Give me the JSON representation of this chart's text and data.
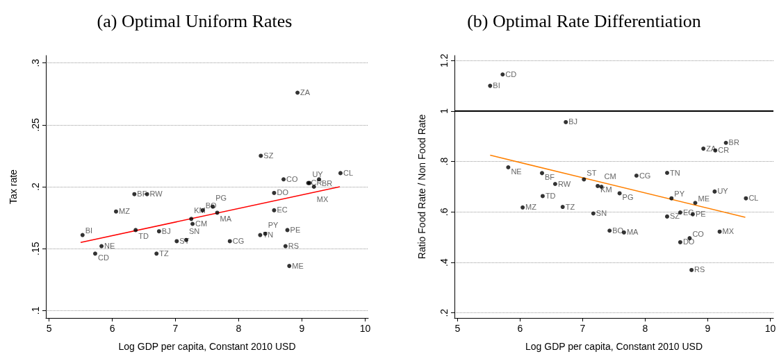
{
  "chart_data": [
    {
      "type": "scatter",
      "title": "(a) Optimal Uniform Rates",
      "xlabel": "Log GDP per capita, Constant 2010 USD",
      "ylabel": "Tax rate",
      "xlim": [
        4.95,
        10.05
      ],
      "xticks": [
        5,
        6,
        7,
        8,
        9,
        10
      ],
      "ylim": [
        0.094,
        0.306
      ],
      "yticks": [
        {
          "value": 0.1,
          "label": ".1"
        },
        {
          "value": 0.15,
          "label": ".15"
        },
        {
          "value": 0.2,
          "label": ".2"
        },
        {
          "value": 0.25,
          "label": ".25"
        },
        {
          "value": 0.3,
          "label": ".3"
        }
      ],
      "grid": "y",
      "marker": "circle",
      "series": [
        {
          "color": "#000000",
          "x": [
            5.53,
            5.83,
            5.73,
            6.06,
            6.35,
            6.55,
            6.37,
            6.74,
            6.7,
            7.02,
            7.17,
            7.25,
            7.27,
            7.43,
            7.59,
            7.66,
            7.86,
            8.35,
            8.34,
            8.42,
            8.56,
            8.56,
            8.71,
            8.93,
            8.77,
            8.74,
            8.8,
            9.1,
            9.12,
            9.19,
            9.27,
            9.61
          ],
          "values": [
            0.161,
            0.152,
            0.146,
            0.18,
            0.194,
            0.194,
            0.165,
            0.164,
            0.146,
            0.156,
            0.157,
            0.174,
            0.17,
            0.181,
            0.184,
            0.179,
            0.156,
            0.225,
            0.161,
            0.162,
            0.195,
            0.181,
            0.206,
            0.276,
            0.165,
            0.152,
            0.136,
            0.203,
            0.203,
            0.2,
            0.206,
            0.211
          ]
        },
        {
          "type": "line",
          "marker": "none",
          "color": "#ff0000",
          "x": [
            5.5,
            9.6
          ],
          "values": [
            0.155,
            0.2
          ]
        }
      ],
      "annotations": [
        {
          "text": "BI",
          "x": 5.53,
          "y": 0.161
        },
        {
          "text": "NE",
          "x": 5.83,
          "y": 0.152
        },
        {
          "text": "CD",
          "x": 5.73,
          "y": 0.146
        },
        {
          "text": "MZ",
          "x": 6.06,
          "y": 0.18
        },
        {
          "text": "BF",
          "x": 6.35,
          "y": 0.194
        },
        {
          "text": "RW",
          "x": 6.55,
          "y": 0.194
        },
        {
          "text": "TD",
          "x": 6.37,
          "y": 0.165
        },
        {
          "text": "BJ",
          "x": 6.74,
          "y": 0.164
        },
        {
          "text": "TZ",
          "x": 6.7,
          "y": 0.146
        },
        {
          "text": "ST",
          "x": 7.02,
          "y": 0.156
        },
        {
          "text": "SN",
          "x": 7.17,
          "y": 0.157
        },
        {
          "text": "KM",
          "x": 7.25,
          "y": 0.174
        },
        {
          "text": "CM",
          "x": 7.27,
          "y": 0.17
        },
        {
          "text": "BO",
          "x": 7.43,
          "y": 0.181
        },
        {
          "text": "PG",
          "x": 7.59,
          "y": 0.184
        },
        {
          "text": "MA",
          "x": 7.66,
          "y": 0.179
        },
        {
          "text": "CG",
          "x": 7.86,
          "y": 0.156
        },
        {
          "text": "SZ",
          "x": 8.35,
          "y": 0.225
        },
        {
          "text": "TN",
          "x": 8.34,
          "y": 0.161
        },
        {
          "text": "PY",
          "x": 8.42,
          "y": 0.162
        },
        {
          "text": "DO",
          "x": 8.56,
          "y": 0.195
        },
        {
          "text": "EC",
          "x": 8.56,
          "y": 0.181
        },
        {
          "text": "CO",
          "x": 8.71,
          "y": 0.206
        },
        {
          "text": "ZA",
          "x": 8.93,
          "y": 0.276
        },
        {
          "text": "PE",
          "x": 8.77,
          "y": 0.165
        },
        {
          "text": "RS",
          "x": 8.74,
          "y": 0.152
        },
        {
          "text": "ME",
          "x": 8.8,
          "y": 0.136
        },
        {
          "text": "CR",
          "x": 9.1,
          "y": 0.203
        },
        {
          "text": "UY",
          "x": 9.12,
          "y": 0.203
        },
        {
          "text": "MX",
          "x": 9.19,
          "y": 0.2
        },
        {
          "text": "BR",
          "x": 9.27,
          "y": 0.206
        },
        {
          "text": "CL",
          "x": 9.61,
          "y": 0.211
        }
      ]
    },
    {
      "type": "scatter",
      "title": "(b) Optimal Rate Differentiation",
      "xlabel": "Log GDP per capita, Constant 2010 USD",
      "ylabel": "Ratio Food Rate / Non Food Rate",
      "xlim": [
        4.95,
        10.05
      ],
      "xticks": [
        5,
        6,
        7,
        8,
        9,
        10
      ],
      "ylim": [
        0.18,
        1.22
      ],
      "yticks": [
        {
          "value": 0.2,
          "label": ".2"
        },
        {
          "value": 0.4,
          "label": ".4"
        },
        {
          "value": 0.6,
          "label": ".6"
        },
        {
          "value": 0.8,
          "label": ".8"
        },
        1,
        1.2
      ],
      "grid": "y",
      "marker": "circle",
      "ref_lines": [
        {
          "axis": "y",
          "value": 1,
          "color": "#000000"
        }
      ],
      "series": [
        {
          "color": "#000000",
          "x": [
            5.72,
            5.52,
            6.73,
            5.81,
            6.35,
            6.56,
            7.02,
            7.24,
            7.3,
            6.36,
            6.04,
            6.68,
            7.17,
            7.43,
            7.66,
            7.59,
            7.86,
            8.35,
            8.42,
            8.8,
            8.35,
            8.56,
            8.76,
            8.56,
            8.71,
            8.74,
            9.19,
            9.11,
            9.61,
            8.93,
            9.12,
            9.29
          ],
          "values": [
            1.145,
            1.1,
            0.956,
            0.777,
            0.754,
            0.711,
            0.729,
            0.703,
            0.7,
            0.663,
            0.618,
            0.62,
            0.594,
            0.526,
            0.519,
            0.674,
            0.744,
            0.755,
            0.654,
            0.636,
            0.582,
            0.598,
            0.591,
            0.48,
            0.496,
            0.37,
            0.522,
            0.681,
            0.654,
            0.851,
            0.844,
            0.874
          ]
        },
        {
          "type": "line",
          "marker": "none",
          "color": "#ff8000",
          "x": [
            5.52,
            9.6
          ],
          "values": [
            0.825,
            0.579
          ]
        }
      ],
      "annotations": [
        {
          "text": "CD",
          "x": 5.72,
          "y": 1.145
        },
        {
          "text": "BI",
          "x": 5.52,
          "y": 1.1
        },
        {
          "text": "BJ",
          "x": 6.73,
          "y": 0.956
        },
        {
          "text": "NE",
          "x": 5.81,
          "y": 0.777
        },
        {
          "text": "BF",
          "x": 6.35,
          "y": 0.754
        },
        {
          "text": "RW",
          "x": 6.56,
          "y": 0.711
        },
        {
          "text": "ST",
          "x": 7.02,
          "y": 0.729
        },
        {
          "text": "KM",
          "x": 7.24,
          "y": 0.703
        },
        {
          "text": "CM",
          "x": 7.3,
          "y": 0.7
        },
        {
          "text": "TD",
          "x": 6.36,
          "y": 0.663
        },
        {
          "text": "MZ",
          "x": 6.04,
          "y": 0.618
        },
        {
          "text": "TZ",
          "x": 6.68,
          "y": 0.62
        },
        {
          "text": "SN",
          "x": 7.17,
          "y": 0.594
        },
        {
          "text": "BO",
          "x": 7.43,
          "y": 0.526
        },
        {
          "text": "MA",
          "x": 7.66,
          "y": 0.519
        },
        {
          "text": "PG",
          "x": 7.59,
          "y": 0.674
        },
        {
          "text": "CG",
          "x": 7.86,
          "y": 0.744
        },
        {
          "text": "TN",
          "x": 8.35,
          "y": 0.755
        },
        {
          "text": "PY",
          "x": 8.42,
          "y": 0.654
        },
        {
          "text": "ME",
          "x": 8.8,
          "y": 0.636
        },
        {
          "text": "SZ",
          "x": 8.35,
          "y": 0.582
        },
        {
          "text": "EC",
          "x": 8.56,
          "y": 0.598
        },
        {
          "text": "PE",
          "x": 8.76,
          "y": 0.591
        },
        {
          "text": "DO",
          "x": 8.56,
          "y": 0.48
        },
        {
          "text": "CO",
          "x": 8.71,
          "y": 0.496
        },
        {
          "text": "RS",
          "x": 8.74,
          "y": 0.37
        },
        {
          "text": "MX",
          "x": 9.19,
          "y": 0.522
        },
        {
          "text": "UY",
          "x": 9.11,
          "y": 0.681
        },
        {
          "text": "CL",
          "x": 9.61,
          "y": 0.654
        },
        {
          "text": "ZA",
          "x": 8.93,
          "y": 0.851
        },
        {
          "text": "CR",
          "x": 9.12,
          "y": 0.844
        },
        {
          "text": "BR",
          "x": 9.29,
          "y": 0.874
        }
      ]
    }
  ]
}
